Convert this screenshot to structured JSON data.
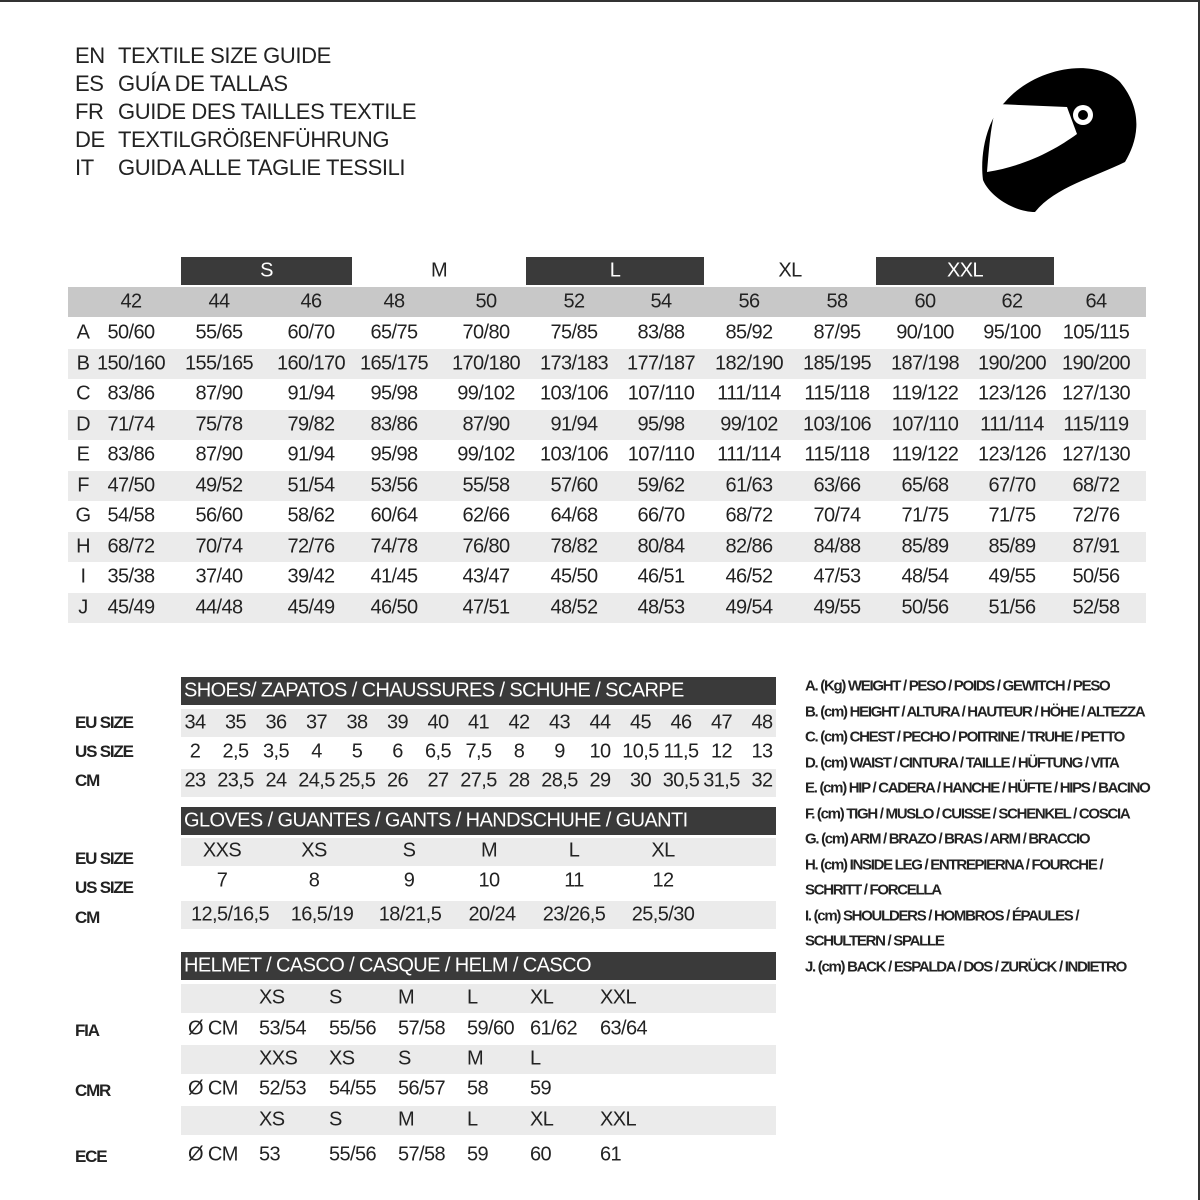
{
  "header": {
    "lines": [
      {
        "code": "EN",
        "text": "TEXTILE SIZE GUIDE"
      },
      {
        "code": "ES",
        "text": "GUÍA DE TALLAS"
      },
      {
        "code": "FR",
        "text": "GUIDE DES TAILLES TEXTILE"
      },
      {
        "code": "DE",
        "text": "TEXTILGRÖßENFÜHRUNG"
      },
      {
        "code": "IT",
        "text": "GUIDA ALLE TAGLIE TESSILI"
      }
    ],
    "icon": "helmet-icon"
  },
  "textile": {
    "size_groups": [
      "S",
      "M",
      "L",
      "XL",
      "XXL"
    ],
    "columns": [
      "42",
      "44",
      "46",
      "48",
      "50",
      "52",
      "54",
      "56",
      "58",
      "60",
      "62",
      "64"
    ],
    "rows": [
      {
        "label": "A",
        "values": [
          "50/60",
          "55/65",
          "60/70",
          "65/75",
          "70/80",
          "75/85",
          "83/88",
          "85/92",
          "87/95",
          "90/100",
          "95/100",
          "105/115"
        ]
      },
      {
        "label": "B",
        "values": [
          "150/160",
          "155/165",
          "160/170",
          "165/175",
          "170/180",
          "173/183",
          "177/187",
          "182/190",
          "185/195",
          "187/198",
          "190/200",
          "190/200"
        ]
      },
      {
        "label": "C",
        "values": [
          "83/86",
          "87/90",
          "91/94",
          "95/98",
          "99/102",
          "103/106",
          "107/110",
          "111/114",
          "115/118",
          "119/122",
          "123/126",
          "127/130"
        ]
      },
      {
        "label": "D",
        "values": [
          "71/74",
          "75/78",
          "79/82",
          "83/86",
          "87/90",
          "91/94",
          "95/98",
          "99/102",
          "103/106",
          "107/110",
          "111/114",
          "115/119"
        ]
      },
      {
        "label": "E",
        "values": [
          "83/86",
          "87/90",
          "91/94",
          "95/98",
          "99/102",
          "103/106",
          "107/110",
          "111/114",
          "115/118",
          "119/122",
          "123/126",
          "127/130"
        ]
      },
      {
        "label": "F",
        "values": [
          "47/50",
          "49/52",
          "51/54",
          "53/56",
          "55/58",
          "57/60",
          "59/62",
          "61/63",
          "63/66",
          "65/68",
          "67/70",
          "68/72"
        ]
      },
      {
        "label": "G",
        "values": [
          "54/58",
          "56/60",
          "58/62",
          "60/64",
          "62/66",
          "64/68",
          "66/70",
          "68/72",
          "70/74",
          "71/75",
          "71/75",
          "72/76"
        ]
      },
      {
        "label": "H",
        "values": [
          "68/72",
          "70/74",
          "72/76",
          "74/78",
          "76/80",
          "78/82",
          "80/84",
          "82/86",
          "84/88",
          "85/89",
          "85/89",
          "87/91"
        ]
      },
      {
        "label": "I",
        "values": [
          "35/38",
          "37/40",
          "39/42",
          "41/45",
          "43/47",
          "45/50",
          "46/51",
          "46/52",
          "47/53",
          "48/54",
          "49/55",
          "50/56"
        ]
      },
      {
        "label": "J",
        "values": [
          "45/49",
          "44/48",
          "45/49",
          "46/50",
          "47/51",
          "48/52",
          "48/53",
          "49/54",
          "49/55",
          "50/56",
          "51/56",
          "52/58"
        ]
      }
    ]
  },
  "shoes": {
    "title": "SHOES/ ZAPATOS / CHAUSSURES / SCHUHE / SCARPE",
    "rows": [
      {
        "label": "EU SIZE",
        "values": [
          "34",
          "35",
          "36",
          "37",
          "38",
          "39",
          "40",
          "41",
          "42",
          "43",
          "44",
          "45",
          "46",
          "47",
          "48"
        ]
      },
      {
        "label": "US SIZE",
        "values": [
          "2",
          "2,5",
          "3,5",
          "4",
          "5",
          "6",
          "6,5",
          "7,5",
          "8",
          "9",
          "10",
          "10,5",
          "11,5",
          "12",
          "13"
        ]
      },
      {
        "label": "CM",
        "values": [
          "23",
          "23,5",
          "24",
          "24,5",
          "25,5",
          "26",
          "27",
          "27,5",
          "28",
          "28,5",
          "29",
          "30",
          "30,5",
          "31,5",
          "32"
        ]
      }
    ]
  },
  "gloves": {
    "title": "GLOVES / GUANTES / GANTS / HANDSCHUHE / GUANTI",
    "rows": [
      {
        "label": "EU SIZE",
        "values": [
          "XXS",
          "XS",
          "S",
          "M",
          "L",
          "XL"
        ]
      },
      {
        "label": "US SIZE",
        "values": [
          "7",
          "8",
          "9",
          "10",
          "11",
          "12"
        ]
      },
      {
        "label": "CM",
        "values": [
          "12,5/16,5",
          "16,5/19",
          "18/21,5",
          "20/24",
          "23/26,5",
          "25,5/30"
        ]
      }
    ]
  },
  "helmet": {
    "title": "HELMET / CASCO / CASQUE / HELM / CASCO",
    "unit": "Ø CM",
    "standards": [
      {
        "label": "FIA",
        "sizes": [
          "XS",
          "S",
          "M",
          "L",
          "XL",
          "XXL"
        ],
        "values": [
          "53/54",
          "55/56",
          "57/58",
          "59/60",
          "61/62",
          "63/64"
        ]
      },
      {
        "label": "CMR",
        "sizes": [
          "XXS",
          "XS",
          "S",
          "M",
          "L"
        ],
        "values": [
          "52/53",
          "54/55",
          "56/57",
          "58",
          "59"
        ]
      },
      {
        "label": "ECE",
        "sizes": [
          "XS",
          "S",
          "M",
          "L",
          "XL",
          "XXL"
        ],
        "values": [
          "53",
          "55/56",
          "57/58",
          "59",
          "60",
          "61"
        ]
      }
    ]
  },
  "legend": [
    "A. (Kg) WEIGHT / PESO / POIDS / GEWITCH / PESO",
    "B. (cm) HEIGHT / ALTURA / HAUTEUR / HÖHE / ALTEZZA",
    "C. (cm) CHEST / PECHO / POITRINE / TRUHE / PETTO",
    "D. (cm) WAIST / CINTURA / TAILLE / HÜFTUNG / VITA",
    "E. (cm) HIP / CADERA / HANCHE / HÜFTE / HIPS /  BACINO",
    "F.  (cm) TIGH / MUSLO / CUISSE / SCHENKEL / COSCIA",
    "G. (cm) ARM  / BRAZO / BRAS / ARM / BRACCIO",
    "H. (cm) INSIDE LEG / ENTREPIERNA / FOURCHE /",
    "SCHRITT / FORCELLA",
    "I.  (cm) SHOULDERS / HOMBROS / ÉPAULES /",
    "SCHULTERN / SPALLE",
    "J. (cm) BACK / ESPALDA / DOS / ZURÜCK / INDIETRO"
  ],
  "colors": {
    "dark_bar": "#3a3a3a",
    "header_gray": "#c8c8c8",
    "stripe": "#ebebeb",
    "text": "#222222"
  }
}
